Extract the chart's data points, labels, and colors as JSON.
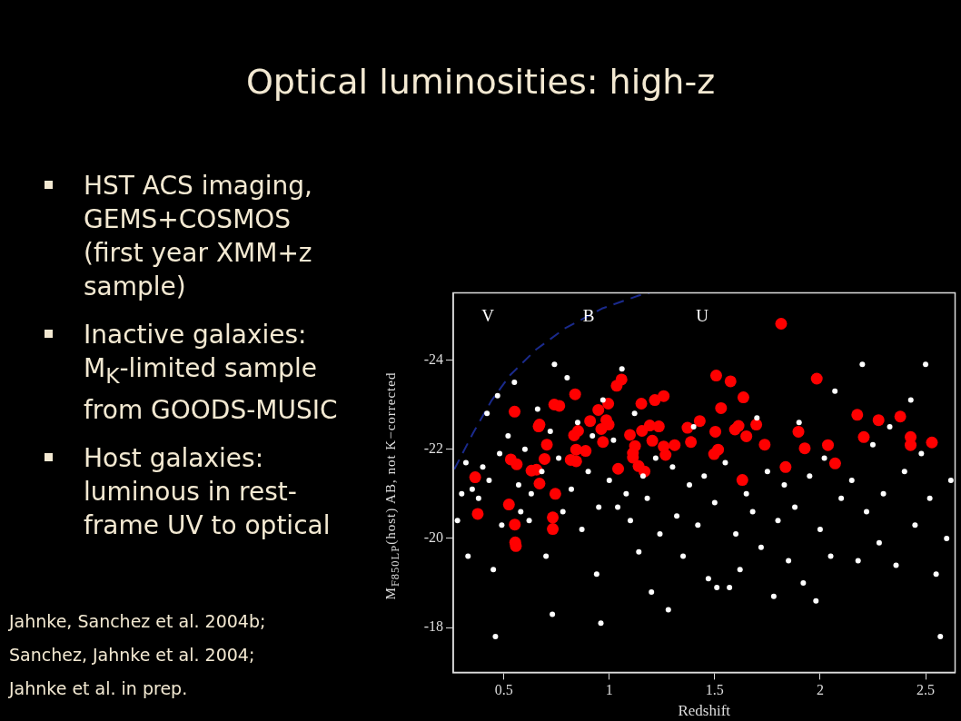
{
  "chart_data": {
    "type": "scatter",
    "title": "Optical luminosities: high-z",
    "xlabel": "Redshift",
    "ylabel": "M$_{F850LP}$(host) AB, not K−corrected",
    "xlim": [
      0.26,
      2.64
    ],
    "ylim": [
      -17,
      -25.5
    ],
    "xticks": [
      0.5,
      1,
      1.5,
      2,
      2.5
    ],
    "yticks": [
      -24,
      -22,
      -20,
      -18
    ],
    "grid": false,
    "legend": false,
    "marker": "circle",
    "annotations": [
      "HST ACS imaging, GEMS+COSMOS (first year XMM+z sample)",
      "Inactive galaxies: M$_{K}$-limited sample from GOODS-MUSIC",
      "Host galaxies: luminous in rest-frame UV to optical",
      "Jahnke, Sanchez et al. 2004b;",
      "Sanchez, Jahnke et al. 2004;",
      "Jahnke et al. in prep.",
      "V",
      "B",
      "U"
    ],
    "series": [
      {
        "color": "#ffffff",
        "x": [
          0.28,
          0.3,
          0.32,
          0.33,
          0.35,
          0.38,
          0.4,
          0.42,
          0.43,
          0.45,
          0.47,
          0.46,
          0.48,
          0.49,
          0.52,
          0.55,
          0.57,
          0.58,
          0.6,
          0.62,
          0.63,
          0.66,
          0.68,
          0.7,
          0.72,
          0.73,
          0.74,
          0.76,
          0.78,
          0.8,
          0.82,
          0.85,
          0.87,
          0.9,
          0.92,
          0.94,
          0.95,
          0.97,
          0.96,
          1.0,
          1.02,
          1.04,
          1.06,
          1.08,
          1.1,
          1.12,
          1.14,
          1.16,
          1.18,
          1.2,
          1.22,
          1.24,
          1.28,
          1.3,
          1.32,
          1.35,
          1.38,
          1.4,
          1.42,
          1.45,
          1.47,
          1.5,
          1.51,
          1.55,
          1.57,
          1.6,
          1.62,
          1.65,
          1.68,
          1.7,
          1.72,
          1.75,
          1.78,
          1.8,
          1.83,
          1.85,
          1.88,
          1.9,
          1.92,
          1.95,
          1.98,
          2.0,
          2.02,
          2.05,
          2.07,
          2.1,
          2.15,
          2.18,
          2.2,
          2.22,
          2.25,
          2.28,
          2.3,
          2.33,
          2.36,
          2.4,
          2.43,
          2.45,
          2.48,
          2.5,
          2.52,
          2.55,
          2.57,
          2.6,
          2.62
        ],
        "values": [
          -20.4,
          -21.0,
          -21.7,
          -19.6,
          -21.1,
          -20.9,
          -21.6,
          -22.8,
          -21.3,
          -19.3,
          -23.2,
          -17.8,
          -21.9,
          -20.3,
          -22.3,
          -23.5,
          -21.2,
          -20.6,
          -22.0,
          -20.4,
          -21.0,
          -22.9,
          -21.5,
          -19.6,
          -22.4,
          -18.3,
          -23.9,
          -21.8,
          -20.6,
          -23.6,
          -21.1,
          -22.6,
          -20.2,
          -21.5,
          -22.3,
          -19.2,
          -20.7,
          -23.1,
          -18.1,
          -21.3,
          -22.2,
          -20.7,
          -23.8,
          -21.0,
          -20.4,
          -22.8,
          -19.7,
          -21.4,
          -20.9,
          -18.8,
          -21.8,
          -20.1,
          -18.4,
          -21.6,
          -20.5,
          -19.6,
          -21.2,
          -22.5,
          -20.3,
          -21.4,
          -19.1,
          -20.8,
          -18.9,
          -21.7,
          -18.9,
          -20.1,
          -19.3,
          -21.0,
          -20.6,
          -22.7,
          -19.8,
          -21.5,
          -18.7,
          -20.4,
          -21.2,
          -19.5,
          -20.7,
          -22.6,
          -19.0,
          -21.4,
          -18.6,
          -20.2,
          -21.8,
          -19.6,
          -23.3,
          -20.9,
          -21.3,
          -19.5,
          -23.9,
          -20.6,
          -22.1,
          -19.9,
          -21.0,
          -22.5,
          -19.4,
          -21.5,
          -23.1,
          -20.3,
          -21.9,
          -23.9,
          -20.9,
          -19.2,
          -17.8,
          -20.0,
          -21.3
        ]
      },
      {
        "color": "#ff0000",
        "x": [
          0.364,
          0.376,
          0.551,
          0.533,
          0.561,
          0.524,
          0.552,
          0.554,
          0.557,
          0.631,
          0.655,
          0.669,
          0.665,
          0.669,
          0.704,
          0.693,
          0.739,
          0.763,
          0.744,
          0.732,
          0.732,
          0.838,
          0.833,
          0.852,
          0.843,
          0.817,
          0.843,
          0.888,
          0.909,
          0.948,
          0.995,
          0.986,
          0.962,
          0.997,
          0.97,
          1.035,
          1.058,
          1.042,
          1.098,
          1.122,
          1.112,
          1.112,
          1.139,
          1.167,
          1.152,
          1.155,
          1.192,
          1.216,
          1.235,
          1.204,
          1.258,
          1.258,
          1.267,
          1.31,
          1.371,
          1.387,
          1.429,
          1.507,
          1.575,
          1.53,
          1.503,
          1.497,
          1.516,
          1.596,
          1.613,
          1.636,
          1.65,
          1.631,
          1.697,
          1.737,
          1.815,
          1.836,
          1.897,
          1.927,
          1.984,
          2.037,
          2.071,
          2.176,
          2.207,
          2.277,
          2.38,
          2.429,
          2.429,
          2.53
        ],
        "values": [
          -21.37,
          -20.55,
          -22.84,
          -21.77,
          -21.66,
          -20.76,
          -20.31,
          -19.91,
          -19.83,
          -21.52,
          -21.54,
          -22.55,
          -22.51,
          -21.23,
          -22.1,
          -21.78,
          -23.0,
          -22.97,
          -21.0,
          -20.47,
          -20.21,
          -23.23,
          -22.31,
          -22.41,
          -21.99,
          -21.76,
          -21.73,
          -21.96,
          -22.63,
          -22.88,
          -23.02,
          -22.65,
          -22.45,
          -22.55,
          -22.16,
          -23.42,
          -23.56,
          -21.56,
          -22.32,
          -22.07,
          -21.91,
          -21.81,
          -21.62,
          -21.5,
          -23.02,
          -22.41,
          -22.53,
          -23.1,
          -22.51,
          -22.19,
          -23.19,
          -22.06,
          -21.87,
          -22.09,
          -22.48,
          -22.16,
          -22.63,
          -23.65,
          -23.52,
          -22.92,
          -22.39,
          -21.89,
          -21.99,
          -22.44,
          -22.52,
          -23.16,
          -22.29,
          -21.31,
          -22.55,
          -22.1,
          -24.81,
          -21.6,
          -22.39,
          -22.02,
          -23.58,
          -22.09,
          -21.68,
          -22.77,
          -22.27,
          -22.65,
          -22.73,
          -22.27,
          -22.09,
          -22.15
        ]
      },
      {
        "type": "line",
        "color": "#1a2a8c",
        "marker": "none",
        "line_style": "dashed",
        "x": [
          0.265,
          0.355,
          0.443,
          0.53,
          0.652,
          0.791,
          0.965,
          1.139,
          1.19
        ],
        "values": [
          -21.55,
          -22.37,
          -23.1,
          -23.66,
          -24.23,
          -24.71,
          -25.15,
          -25.44,
          -25.5
        ]
      }
    ]
  }
}
